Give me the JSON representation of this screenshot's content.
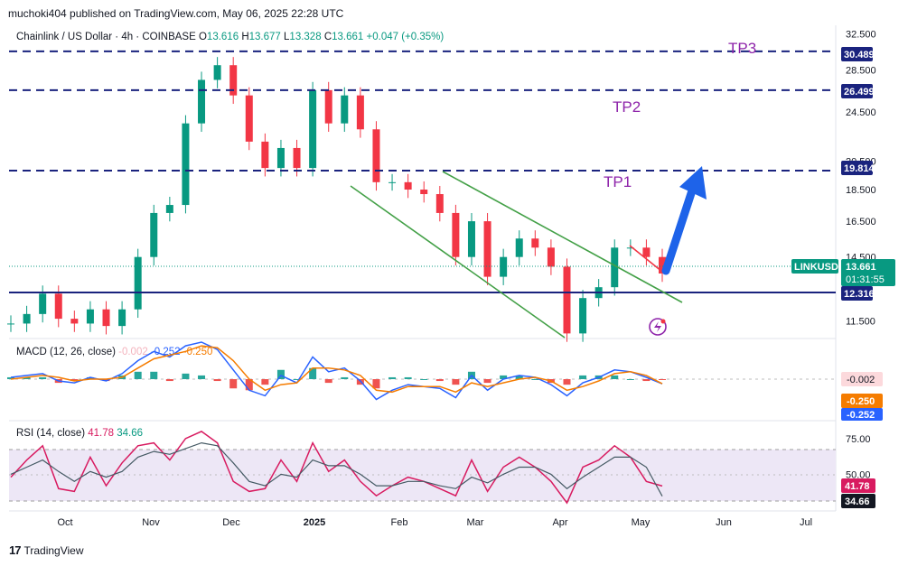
{
  "header": {
    "published": "muchoki404 published on TradingView.com, May 06, 2025 22:28 UTC"
  },
  "legend": {
    "symbol": "Chainlink / US Dollar · 4h · COINBASE",
    "o_label": "O",
    "o": "13.616",
    "h_label": "H",
    "h": "13.677",
    "l_label": "L",
    "l": "13.328",
    "c_label": "C",
    "c": "13.661",
    "change": "+0.047 (+0.35%)"
  },
  "macd_legend": {
    "name": "MACD (12, 26, close)",
    "v1": "-0.002",
    "v2": "-0.252",
    "v3": "-0.250"
  },
  "rsi_legend": {
    "name": "RSI (14, close)",
    "v1": "41.78",
    "v2": "34.66"
  },
  "footer": {
    "brand": "TradingView"
  },
  "colors": {
    "up": "#089981",
    "down": "#f23645",
    "dashed": "#1a237e",
    "support": "#1a237e",
    "wedge": "#43a047",
    "target": "#8e24aa",
    "arrow": "#1e63e9",
    "rsi_band": "#ede7f6"
  },
  "chart_data": [
    {
      "type": "line",
      "name": "price",
      "title": "Chainlink / US Dollar · 4h · COINBASE",
      "ylim": [
        10.8,
        33.5
      ],
      "y_scale": "log",
      "y_ticks": [
        "32.500",
        "28.500",
        "24.500",
        "20.500",
        "18.500",
        "16.500",
        "14.500",
        "11.500"
      ],
      "x_ticks": [
        "Oct",
        "Nov",
        "Dec",
        "2025",
        "Feb",
        "Mar",
        "Apr",
        "May",
        "Jun",
        "Jul"
      ],
      "x": [
        "Sep 18",
        "Sep 25",
        "Oct 1",
        "Oct 8",
        "Oct 15",
        "Oct 22",
        "Oct 29",
        "Nov 5",
        "Nov 12",
        "Nov 19",
        "Nov 26",
        "Dec 3",
        "Dec 8",
        "Dec 13",
        "Dec 17",
        "Dec 22",
        "Dec 28",
        "Jan 3",
        "Jan 7",
        "Jan 12",
        "Jan 17",
        "Jan 22",
        "Jan 27",
        "Feb 3",
        "Feb 8",
        "Feb 14",
        "Feb 19",
        "Feb 24",
        "Mar 1",
        "Mar 6",
        "Mar 11",
        "Mar 16",
        "Mar 21",
        "Mar 26",
        "Apr 1",
        "Apr 7",
        "Apr 11",
        "Apr 16",
        "Apr 22",
        "Apr 26",
        "Apr 30",
        "May 6"
      ],
      "values": [
        11.4,
        11.8,
        12.7,
        11.6,
        11.4,
        12.0,
        11.3,
        12.0,
        14.5,
        17.0,
        17.5,
        23.5,
        27.5,
        29.0,
        26.0,
        22.0,
        20.0,
        21.5,
        20.0,
        26.5,
        23.5,
        26.0,
        23.0,
        19.0,
        19.0,
        18.5,
        18.2,
        17.0,
        14.5,
        16.5,
        13.5,
        14.5,
        15.5,
        15.0,
        14.0,
        11.0,
        12.5,
        13.0,
        15.0,
        15.0,
        14.5,
        13.661
      ],
      "levels": [
        {
          "label": "TP3",
          "value": "30.489"
        },
        {
          "label": "TP2",
          "value": "26.499"
        },
        {
          "label": "TP1",
          "value": "19.814"
        }
      ],
      "support": "12.316",
      "last_price_label": "LINKUSD",
      "last_price": "13.661",
      "countdown": "01:31:55"
    },
    {
      "type": "line",
      "name": "MACD",
      "series": [
        {
          "name": "MACD",
          "values": [
            0.1,
            0.2,
            0.3,
            -0.1,
            -0.2,
            0.1,
            -0.1,
            0.3,
            1.0,
            1.5,
            1.2,
            1.8,
            2.0,
            1.6,
            0.5,
            -0.6,
            -0.9,
            0.2,
            -0.2,
            1.2,
            0.4,
            0.6,
            -0.1,
            -1.1,
            -0.6,
            -0.3,
            -0.4,
            -0.5,
            -1.0,
            0.2,
            -0.6,
            0.0,
            0.2,
            0.1,
            -0.3,
            -0.9,
            -0.2,
            0.1,
            0.5,
            0.4,
            0.1,
            -0.252
          ]
        },
        {
          "name": "Signal",
          "values": [
            0.0,
            0.1,
            0.2,
            0.1,
            -0.1,
            0.0,
            0.0,
            0.1,
            0.6,
            1.1,
            1.3,
            1.5,
            1.8,
            1.7,
            1.0,
            0.0,
            -0.6,
            -0.3,
            -0.2,
            0.6,
            0.6,
            0.5,
            0.2,
            -0.6,
            -0.7,
            -0.4,
            -0.4,
            -0.4,
            -0.7,
            -0.2,
            -0.4,
            -0.2,
            0.0,
            0.1,
            -0.1,
            -0.6,
            -0.4,
            -0.1,
            0.3,
            0.4,
            0.2,
            -0.25
          ]
        }
      ],
      "levels": [
        {
          "label": "Histogram",
          "value": "-0.002"
        },
        {
          "label": "Signal",
          "value": "-0.250"
        },
        {
          "label": "MACD",
          "value": "-0.252"
        }
      ]
    },
    {
      "type": "line",
      "name": "RSI",
      "ylim": [
        25,
        85
      ],
      "y_ticks": [
        "75.00",
        "50.00"
      ],
      "series": [
        {
          "name": "RSI",
          "values": [
            48,
            60,
            70,
            40,
            38,
            62,
            42,
            58,
            70,
            72,
            60,
            75,
            80,
            72,
            45,
            38,
            40,
            60,
            45,
            72,
            52,
            60,
            45,
            35,
            42,
            48,
            45,
            40,
            35,
            60,
            38,
            55,
            62,
            55,
            45,
            30,
            55,
            60,
            70,
            62,
            45,
            41.78
          ]
        },
        {
          "name": "RSI-based MA",
          "values": [
            50,
            55,
            60,
            52,
            45,
            52,
            48,
            52,
            62,
            66,
            64,
            68,
            72,
            70,
            58,
            45,
            42,
            50,
            48,
            60,
            56,
            56,
            50,
            42,
            42,
            45,
            45,
            42,
            40,
            48,
            44,
            50,
            55,
            55,
            50,
            40,
            48,
            55,
            62,
            62,
            55,
            34.66
          ]
        }
      ],
      "levels": [
        {
          "label": "RSI",
          "value": "41.78"
        },
        {
          "label": "MA",
          "value": "34.66"
        }
      ]
    }
  ]
}
